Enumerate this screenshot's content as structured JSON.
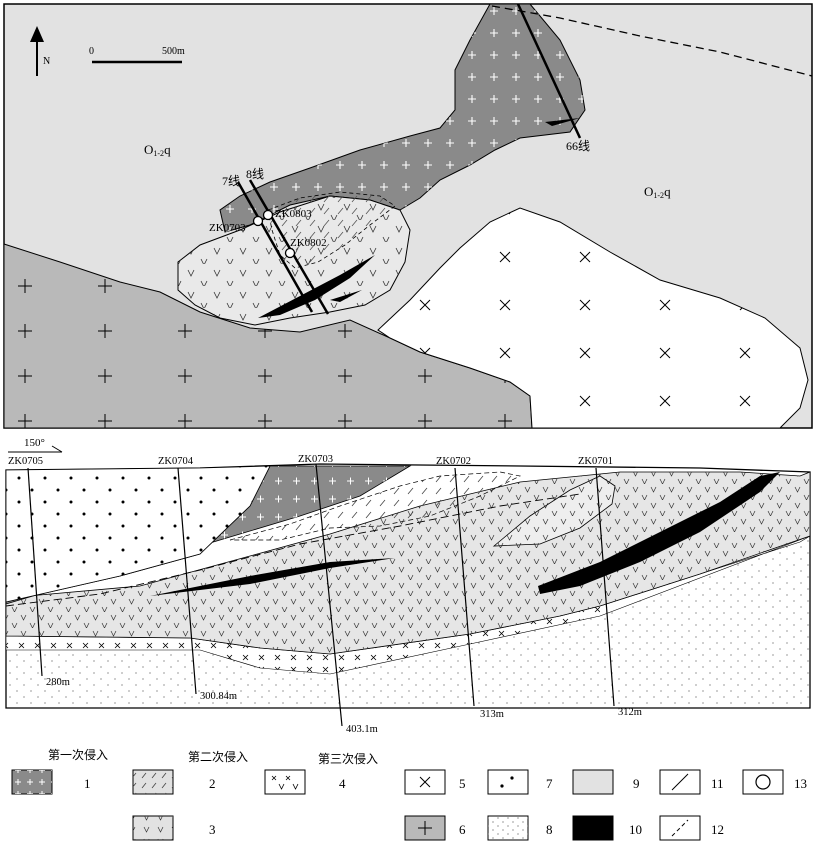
{
  "map": {
    "north_label": "N",
    "scale": {
      "zero": "0",
      "length": "500m"
    },
    "unit_labels": [
      {
        "id": "o12q-west",
        "base": "O",
        "sub": "1-2",
        "suffix": "q"
      },
      {
        "id": "o12q-east",
        "base": "O",
        "sub": "1-2",
        "suffix": "q"
      }
    ],
    "line_labels": [
      "7线",
      "8线",
      "66线"
    ],
    "drillholes": [
      "ZK0803",
      "ZK0703",
      "ZK0802"
    ]
  },
  "section": {
    "azimuth_label": "150°",
    "drillholes": [
      {
        "id": "ZK0705",
        "depth": "280m"
      },
      {
        "id": "ZK0704",
        "depth": "300.84m"
      },
      {
        "id": "ZK0703",
        "depth": "403.1m"
      },
      {
        "id": "ZK0702",
        "depth": "313m"
      },
      {
        "id": "ZK0701",
        "depth": "312m"
      }
    ]
  },
  "legend": {
    "group_labels": [
      "第一次侵入",
      "第二次侵入",
      "第三次侵入"
    ],
    "items": [
      {
        "number": "1",
        "pattern": "first-intrusion-dark-plus"
      },
      {
        "number": "2",
        "pattern": "second-intrusion-dash"
      },
      {
        "number": "3",
        "pattern": "second-intrusion-v"
      },
      {
        "number": "4",
        "pattern": "third-intrusion-x-v"
      },
      {
        "number": "5",
        "pattern": "white-x"
      },
      {
        "number": "6",
        "pattern": "gray-plus"
      },
      {
        "number": "7",
        "pattern": "dots"
      },
      {
        "number": "8",
        "pattern": "fine-dots"
      },
      {
        "number": "9",
        "pattern": "light-gray"
      },
      {
        "number": "10",
        "pattern": "black-orebody"
      },
      {
        "number": "11",
        "pattern": "line"
      },
      {
        "number": "12",
        "pattern": "dashed-line"
      },
      {
        "number": "13",
        "pattern": "circle"
      }
    ]
  },
  "colors": {
    "light_gray": "#e2e2e2",
    "mid_gray": "#b9b9b9",
    "dark_gray": "#8a8a8a",
    "black": "#000000",
    "white": "#ffffff"
  }
}
